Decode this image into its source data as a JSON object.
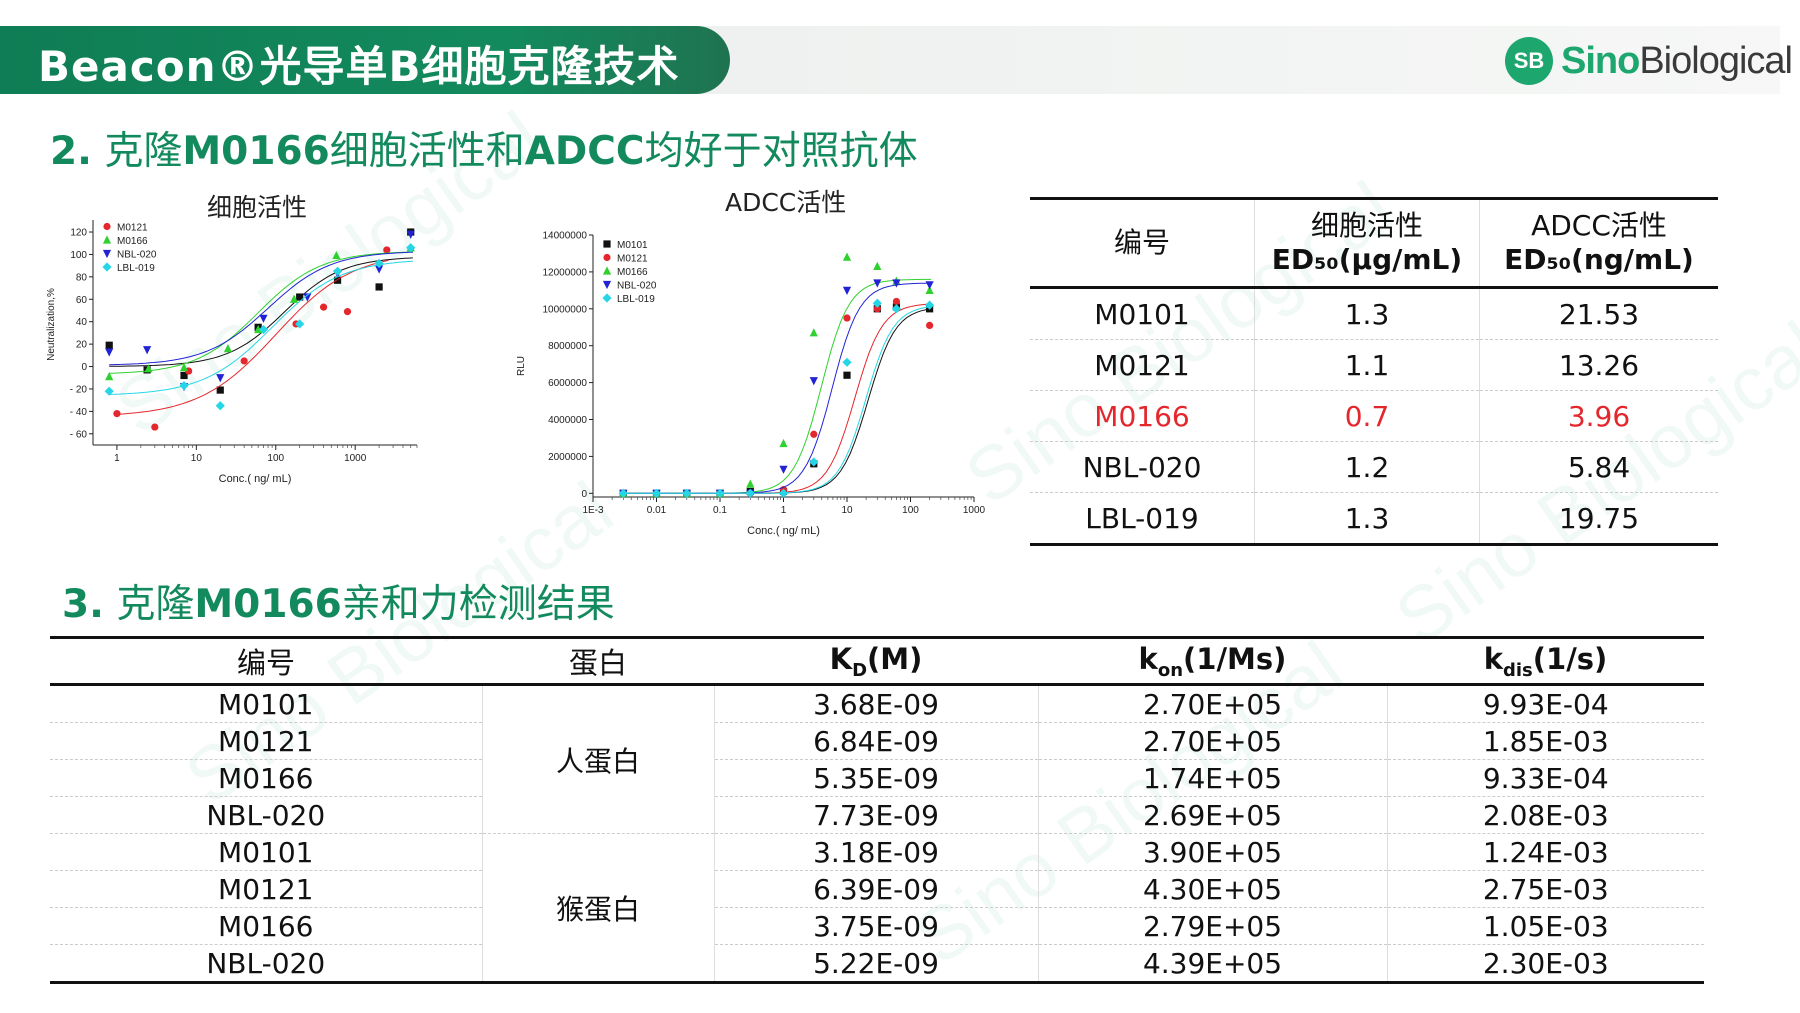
{
  "header": {
    "title": "Beacon®光导单B细胞克隆技术",
    "logo_mark": "SB",
    "logo_word_a": "Sino",
    "logo_word_b": "Biological"
  },
  "section2": {
    "number": "2.",
    "parts": [
      "克隆",
      "M0166",
      "细胞活性和",
      "ADCC",
      "均好于对照抗体"
    ]
  },
  "section3": {
    "number": "3.",
    "parts": [
      "克隆",
      "M0166",
      "亲和力检测结果"
    ]
  },
  "watermark": "Sino Biological",
  "colors": {
    "green": "#138a5e",
    "red": "#e4272c",
    "M0101": "#111111",
    "M0121": "#e4272c",
    "M0166": "#2fd12f",
    "NBL-020": "#2323d6",
    "LBL-019": "#26d6e6"
  },
  "chart_data": [
    {
      "type": "scatter",
      "title": "细胞活性",
      "xlabel": "Conc.( ng/ mL)",
      "ylabel": "Neutralization,%",
      "x_scale": "log",
      "xlim": [
        0.5,
        6000
      ],
      "ylim": [
        -70,
        145
      ],
      "x_ticks": [
        "1",
        "10",
        "100",
        "1000"
      ],
      "y_ticks": [
        "140",
        "120",
        "100",
        "80",
        "60",
        "40",
        "20",
        "0",
        "- 20",
        "- 40",
        "- 60"
      ],
      "legend_position": "top-left",
      "series": [
        {
          "name": "M0101",
          "x": [
            0.8,
            2.4,
            7,
            20,
            60,
            200,
            600,
            2000,
            5000
          ],
          "y": [
            19,
            -3,
            -8,
            -21,
            35,
            62,
            77,
            71,
            120
          ],
          "fit": {
            "bottom": 0,
            "top": 98,
            "ec50": 130,
            "hill": 1.2
          }
        },
        {
          "name": "M0121",
          "x": [
            1,
            3,
            8,
            40,
            180,
            400,
            800,
            2500
          ],
          "y": [
            -42,
            -54,
            -4,
            5,
            38,
            53,
            49,
            104
          ],
          "fit": {
            "bottom": -45,
            "top": 102,
            "ec50": 100,
            "hill": 0.9
          }
        },
        {
          "name": "M0166",
          "x": [
            0.8,
            2.5,
            7,
            25,
            60,
            170,
            580,
            5000
          ],
          "y": [
            -9,
            -2,
            -1,
            16,
            33,
            60,
            99,
            106
          ],
          "fit": {
            "bottom": -7,
            "top": 103,
            "ec50": 60,
            "hill": 1.1
          }
        },
        {
          "name": "NBL-020",
          "x": [
            0.8,
            2.4,
            7,
            20,
            70,
            250,
            600,
            2000,
            5000
          ],
          "y": [
            13,
            15,
            -18,
            -10,
            43,
            62,
            83,
            87,
            118
          ],
          "fit": {
            "bottom": 1,
            "top": 103,
            "ec50": 80,
            "hill": 1.1
          }
        },
        {
          "name": "LBL-019",
          "x": [
            0.8,
            7,
            20,
            70,
            200,
            600,
            2000,
            5000
          ],
          "y": [
            -22,
            -17,
            -35,
            33,
            38,
            85,
            92,
            106
          ],
          "fit": {
            "bottom": -26,
            "top": 96,
            "ec50": 90,
            "hill": 1.0
          }
        }
      ]
    },
    {
      "type": "scatter",
      "title": "ADCC活性",
      "xlabel": "Conc.( ng/ mL)",
      "ylabel": "RLU",
      "x_scale": "log",
      "xlim": [
        0.001,
        1000
      ],
      "ylim": [
        -200000,
        14000000
      ],
      "x_ticks": [
        "1E-3",
        "0.01",
        "0.1",
        "1",
        "10",
        "100",
        "1000"
      ],
      "y_ticks": [
        "14000000",
        "12000000",
        "10000000",
        "8000000",
        "6000000",
        "4000000",
        "2000000",
        "0"
      ],
      "legend_position": "top-left",
      "series": [
        {
          "name": "M0101",
          "x": [
            0.003,
            0.01,
            0.03,
            0.1,
            0.3,
            1,
            3,
            10,
            30,
            60,
            200
          ],
          "y": [
            0,
            0,
            0,
            0,
            100000,
            100000,
            1600000,
            6400000,
            10000000,
            10100000,
            10000000
          ],
          "fit": {
            "bottom": 0,
            "top": 10100000,
            "ec50": 21.53,
            "hill": 2
          }
        },
        {
          "name": "M0121",
          "x": [
            0.003,
            0.01,
            0.03,
            0.1,
            0.3,
            1,
            3,
            10,
            30,
            60,
            200
          ],
          "y": [
            0,
            0,
            0,
            0,
            0,
            200000,
            3200000,
            9500000,
            10000000,
            10400000,
            9100000
          ],
          "fit": {
            "bottom": 0,
            "top": 10300000,
            "ec50": 13.26,
            "hill": 2
          }
        },
        {
          "name": "M0166",
          "x": [
            0.003,
            0.01,
            0.03,
            0.1,
            0.3,
            1,
            3,
            10,
            30,
            60,
            200
          ],
          "y": [
            0,
            0,
            0,
            0,
            500000,
            2700000,
            8700000,
            12800000,
            12300000,
            11500000,
            11000000
          ],
          "fit": {
            "bottom": 0,
            "top": 11600000,
            "ec50": 3.96,
            "hill": 2
          }
        },
        {
          "name": "NBL-020",
          "x": [
            0.003,
            0.01,
            0.03,
            0.1,
            0.3,
            1,
            3,
            10,
            30,
            60,
            200
          ],
          "y": [
            0,
            0,
            0,
            0,
            0,
            1300000,
            6100000,
            11000000,
            11400000,
            11400000,
            11300000
          ],
          "fit": {
            "bottom": 0,
            "top": 11400000,
            "ec50": 5.84,
            "hill": 2
          }
        },
        {
          "name": "LBL-019",
          "x": [
            0.003,
            0.01,
            0.03,
            0.1,
            0.3,
            1,
            3,
            10,
            30,
            60,
            200
          ],
          "y": [
            0,
            0,
            0,
            0,
            0,
            0,
            1700000,
            7100000,
            10300000,
            10000000,
            10200000
          ],
          "fit": {
            "bottom": 0,
            "top": 10200000,
            "ec50": 19.75,
            "hill": 2
          }
        }
      ]
    }
  ],
  "table1": {
    "headers": [
      {
        "line1": "编号",
        "line2": ""
      },
      {
        "line1": "细胞活性",
        "line2": "ED₅₀(μg/mL)"
      },
      {
        "line1": "ADCC活性",
        "line2": "ED₅₀(ng/mL)"
      }
    ],
    "rows": [
      [
        "M0101",
        "1.3",
        "21.53"
      ],
      [
        "M0121",
        "1.1",
        "13.26"
      ],
      [
        "M0166",
        "0.7",
        "3.96"
      ],
      [
        "NBL-020",
        "1.2",
        "5.84"
      ],
      [
        "LBL-019",
        "1.3",
        "19.75"
      ]
    ]
  },
  "table2": {
    "headers": [
      "编号",
      "蛋白",
      "K_D(M)",
      "k_on(1/Ms)",
      "k_dis(1/s)"
    ],
    "groups": [
      "人蛋白",
      "猴蛋白"
    ],
    "rows": [
      [
        "M0101",
        "3.68E-09",
        "2.70E+05",
        "9.93E-04"
      ],
      [
        "M0121",
        "6.84E-09",
        "2.70E+05",
        "1.85E-03"
      ],
      [
        "M0166",
        "5.35E-09",
        "1.74E+05",
        "9.33E-04"
      ],
      [
        "NBL-020",
        "7.73E-09",
        "2.69E+05",
        "2.08E-03"
      ],
      [
        "M0101",
        "3.18E-09",
        "3.90E+05",
        "1.24E-03"
      ],
      [
        "M0121",
        "6.39E-09",
        "4.30E+05",
        "2.75E-03"
      ],
      [
        "M0166",
        "3.75E-09",
        "2.79E+05",
        "1.05E-03"
      ],
      [
        "NBL-020",
        "5.22E-09",
        "4.39E+05",
        "2.30E-03"
      ]
    ]
  }
}
